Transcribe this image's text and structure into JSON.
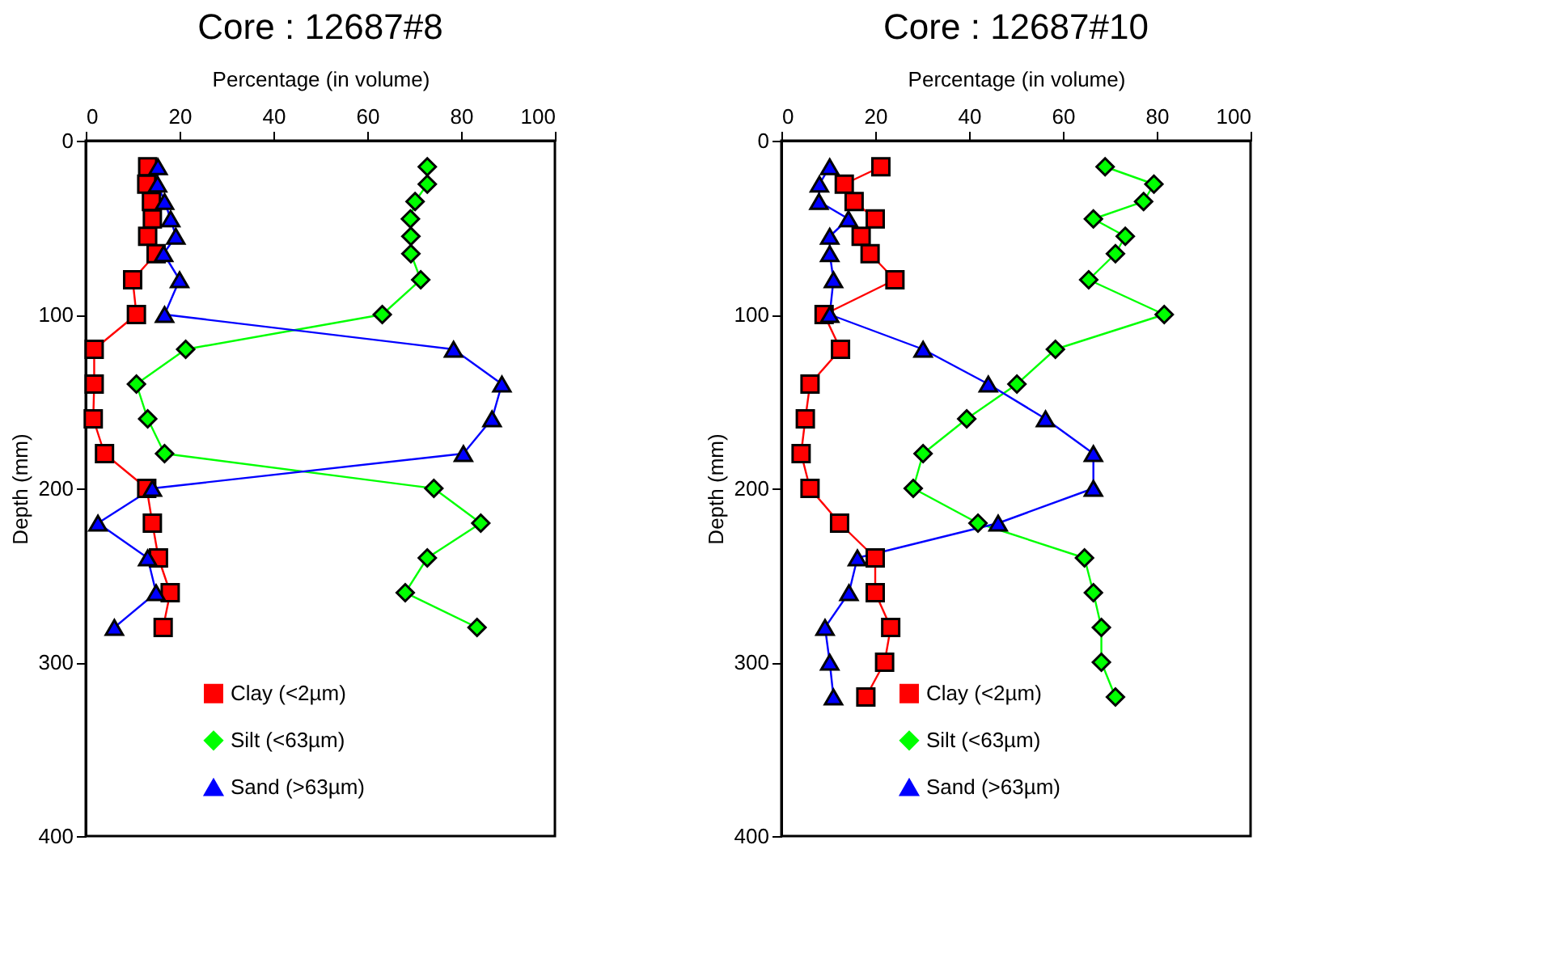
{
  "chart_data": [
    {
      "type": "line",
      "title": "Core : 12687#8",
      "xlabel": "Percentage (in volume)",
      "ylabel": "Depth (mm)",
      "xlim": [
        0,
        100
      ],
      "xticks": [
        0,
        20,
        40,
        60,
        80,
        100
      ],
      "ylim": [
        400,
        0
      ],
      "yticks": [
        0,
        100,
        200,
        300,
        400
      ],
      "grid": false,
      "legend": "bottom left",
      "line_style": "solid",
      "series": [
        {
          "name": "Clay (<2µm)",
          "color": "#ff0000",
          "marker": "square",
          "x": [
            13.2,
            13,
            14,
            14.2,
            13.2,
            15,
            10,
            10.8,
            1.8,
            1.8,
            1.6,
            4,
            13,
            14.2,
            15.5,
            18,
            16.5
          ],
          "values": [
            15,
            25,
            35,
            45,
            55,
            65,
            80,
            100,
            120,
            140,
            160,
            180,
            200,
            220,
            240,
            260,
            280
          ]
        },
        {
          "name": "Silt (<63µm)",
          "color": "#00ff00",
          "marker": "diamond",
          "x": [
            72.8,
            72.8,
            70.2,
            69.2,
            69.3,
            69.3,
            71.4,
            63.2,
            21.3,
            10.8,
            13.2,
            16.8,
            74.2,
            84.2,
            72.8,
            68.1,
            83.4
          ],
          "values": [
            15,
            25,
            35,
            45,
            55,
            65,
            80,
            100,
            120,
            140,
            160,
            180,
            200,
            220,
            240,
            260,
            280
          ]
        },
        {
          "name": "Sand (>63µm)",
          "color": "#0000ff",
          "marker": "triangle",
          "x": [
            15.4,
            15.3,
            16.8,
            18.1,
            19.2,
            16.6,
            20,
            16.8,
            78.4,
            88.7,
            86.6,
            80.5,
            14.2,
            2.6,
            13.2,
            15,
            6.1
          ],
          "values": [
            15,
            25,
            35,
            45,
            55,
            65,
            80,
            100,
            120,
            140,
            160,
            180,
            200,
            220,
            240,
            260,
            280
          ]
        }
      ]
    },
    {
      "type": "line",
      "title": "Core : 12687#10",
      "xlabel": "Percentage (in volume)",
      "ylabel": "Depth (mm)",
      "xlim": [
        0,
        100
      ],
      "xticks": [
        0,
        20,
        40,
        60,
        80,
        100
      ],
      "ylim": [
        400,
        0
      ],
      "yticks": [
        0,
        100,
        200,
        300,
        400
      ],
      "grid": false,
      "legend": "bottom left",
      "line_style": "solid",
      "series": [
        {
          "name": "Clay (<2µm)",
          "color": "#ff0000",
          "marker": "square",
          "x": [
            21.2,
            13.4,
            15.5,
            20,
            17,
            18.9,
            24.2,
            9.1,
            12.6,
            6.1,
            5.1,
            4.2,
            6.1,
            12.4,
            20,
            20,
            23.3,
            22,
            18
          ],
          "values": [
            15,
            25,
            35,
            45,
            55,
            65,
            80,
            100,
            120,
            140,
            160,
            180,
            200,
            220,
            240,
            260,
            280,
            300,
            320
          ]
        },
        {
          "name": "Silt  (<63µm)",
          "color": "#00ff00",
          "marker": "diamond",
          "x": [
            69,
            79.4,
            77.2,
            66.5,
            73.3,
            71.2,
            65.5,
            81.6,
            58.4,
            50.2,
            39.5,
            30.2,
            28.1,
            41.9,
            64.6,
            66.5,
            68.2,
            68.2,
            71.2
          ],
          "values": [
            15,
            25,
            35,
            45,
            55,
            65,
            80,
            100,
            120,
            140,
            160,
            180,
            200,
            220,
            240,
            260,
            280,
            300,
            320
          ]
        },
        {
          "name": "Sand (>63µm)",
          "color": "#0000ff",
          "marker": "triangle",
          "x": [
            10.3,
            8.1,
            8,
            14.3,
            10.3,
            10.3,
            11.1,
            10.3,
            30.2,
            44.1,
            56.3,
            66.5,
            66.5,
            46.2,
            16.2,
            14.4,
            9.3,
            10.3,
            11.1
          ],
          "values": [
            15,
            25,
            35,
            45,
            55,
            65,
            80,
            100,
            120,
            140,
            160,
            180,
            200,
            220,
            240,
            260,
            280,
            300,
            320
          ]
        }
      ]
    }
  ]
}
